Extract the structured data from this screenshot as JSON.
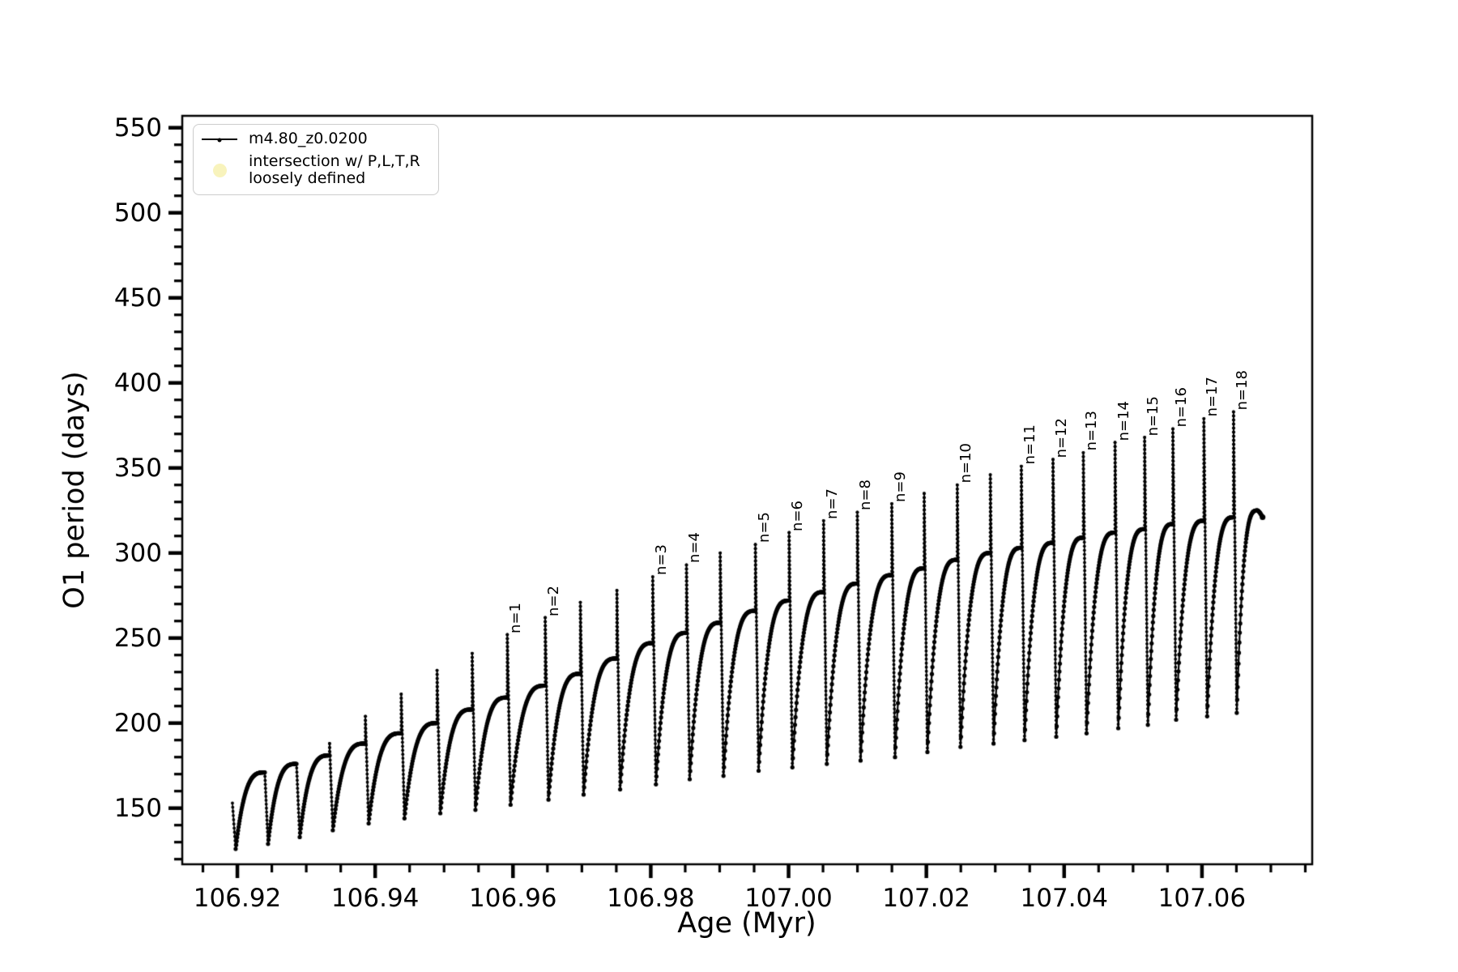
{
  "figure": {
    "x_axis": {
      "label": "Age (Myr)",
      "tick_values": [
        106.92,
        106.94,
        106.96,
        106.98,
        107.0,
        107.02,
        107.04,
        107.06
      ],
      "tick_labels": [
        "106.92",
        "106.94",
        "106.96",
        "106.98",
        "107.00",
        "107.02",
        "107.04",
        "107.06"
      ],
      "minor_step": 0.005
    },
    "y_axis": {
      "label": "O1 period (days)",
      "tick_values": [
        150,
        200,
        250,
        300,
        350,
        400,
        450,
        500,
        550
      ],
      "tick_labels": [
        "150",
        "200",
        "250",
        "300",
        "350",
        "400",
        "450",
        "500",
        "550"
      ],
      "minor_step": 10
    },
    "legend": {
      "items": [
        {
          "label": "m4.80_z0.0200",
          "marker": "line-dot",
          "color": "#000000"
        },
        {
          "label": "intersection w/ P,L,T,R\nloosely defined",
          "marker": "circle",
          "color": "#f8f3bc"
        }
      ]
    },
    "colors": {
      "line": "#000000",
      "legend_marker": "#f8f3bc",
      "legend_border": "#cccccc",
      "background": "#ffffff"
    }
  },
  "chart_data": {
    "type": "line",
    "title": "",
    "xlabel": "Age (Myr)",
    "ylabel": "O1 period (days)",
    "xlim": [
      106.912,
      107.076
    ],
    "ylim": [
      117,
      557
    ],
    "grid": false,
    "legend_position": "upper left",
    "series_name": "m4.80_z0.0200",
    "description": "Sawtooth pulsation cycles: each cycle drops sharply to a minimum, rises steeply to a saturating plateau, and ends in a narrow vertical spike; labeled spikes n=1..n=18.",
    "entry": {
      "age": 106.9194,
      "value": 153
    },
    "cycles": [
      {
        "start": 106.9194,
        "end": 106.9241,
        "min": 126,
        "plateau": 171,
        "spike": null,
        "label": null
      },
      {
        "start": 106.9241,
        "end": 106.9287,
        "min": 129,
        "plateau": 176,
        "spike": null,
        "label": null
      },
      {
        "start": 106.9287,
        "end": 106.9335,
        "min": 133,
        "plateau": 181,
        "spike": 188,
        "label": null
      },
      {
        "start": 106.9335,
        "end": 106.9387,
        "min": 137,
        "plateau": 188,
        "spike": 204,
        "label": null
      },
      {
        "start": 106.9387,
        "end": 106.9439,
        "min": 141,
        "plateau": 194,
        "spike": 217,
        "label": null
      },
      {
        "start": 106.9439,
        "end": 106.9491,
        "min": 144,
        "plateau": 200,
        "spike": 231,
        "label": null
      },
      {
        "start": 106.9491,
        "end": 106.9542,
        "min": 147,
        "plateau": 208,
        "spike": 241,
        "label": null
      },
      {
        "start": 106.9542,
        "end": 106.9593,
        "min": 149,
        "plateau": 215,
        "spike": 252,
        "label": "n=1"
      },
      {
        "start": 106.9593,
        "end": 106.9648,
        "min": 152,
        "plateau": 222,
        "spike": 262,
        "label": "n=2"
      },
      {
        "start": 106.9648,
        "end": 106.9699,
        "min": 155,
        "plateau": 229,
        "spike": 271,
        "label": null
      },
      {
        "start": 106.9699,
        "end": 106.9752,
        "min": 158,
        "plateau": 238,
        "spike": 278,
        "label": null
      },
      {
        "start": 106.9752,
        "end": 106.9804,
        "min": 161,
        "plateau": 247,
        "spike": 286,
        "label": "n=3"
      },
      {
        "start": 106.9804,
        "end": 106.9853,
        "min": 164,
        "plateau": 253,
        "spike": 293,
        "label": "n=4"
      },
      {
        "start": 106.9853,
        "end": 106.9902,
        "min": 167,
        "plateau": 259,
        "spike": 300,
        "label": null
      },
      {
        "start": 106.9902,
        "end": 106.9953,
        "min": 169,
        "plateau": 266,
        "spike": 305,
        "label": "n=5"
      },
      {
        "start": 106.9953,
        "end": 107.0002,
        "min": 172,
        "plateau": 272,
        "spike": 312,
        "label": "n=6"
      },
      {
        "start": 107.0002,
        "end": 107.0052,
        "min": 174,
        "plateau": 277,
        "spike": 319,
        "label": "n=7"
      },
      {
        "start": 107.0052,
        "end": 107.0101,
        "min": 176,
        "plateau": 282,
        "spike": 324,
        "label": "n=8"
      },
      {
        "start": 107.0101,
        "end": 107.0151,
        "min": 178,
        "plateau": 287,
        "spike": 329,
        "label": "n=9"
      },
      {
        "start": 107.0151,
        "end": 107.0198,
        "min": 180,
        "plateau": 291,
        "spike": 335,
        "label": null
      },
      {
        "start": 107.0198,
        "end": 107.0246,
        "min": 183,
        "plateau": 296,
        "spike": 340,
        "label": "n=10"
      },
      {
        "start": 107.0246,
        "end": 107.0294,
        "min": 186,
        "plateau": 300,
        "spike": 346,
        "label": null
      },
      {
        "start": 107.0294,
        "end": 107.0339,
        "min": 188,
        "plateau": 303,
        "spike": 351,
        "label": "n=11"
      },
      {
        "start": 107.0339,
        "end": 107.0385,
        "min": 190,
        "plateau": 306,
        "spike": 355,
        "label": "n=12"
      },
      {
        "start": 107.0385,
        "end": 107.0429,
        "min": 192,
        "plateau": 309,
        "spike": 359,
        "label": "n=13"
      },
      {
        "start": 107.0429,
        "end": 107.0475,
        "min": 194,
        "plateau": 312,
        "spike": 365,
        "label": "n=14"
      },
      {
        "start": 107.0475,
        "end": 107.0518,
        "min": 197,
        "plateau": 314,
        "spike": 368,
        "label": "n=15"
      },
      {
        "start": 107.0518,
        "end": 107.0559,
        "min": 199,
        "plateau": 317,
        "spike": 373,
        "label": "n=16"
      },
      {
        "start": 107.0559,
        "end": 107.0604,
        "min": 202,
        "plateau": 319,
        "spike": 379,
        "label": "n=17"
      },
      {
        "start": 107.0604,
        "end": 107.0647,
        "min": 204,
        "plateau": 321,
        "spike": 383,
        "label": "n=18"
      }
    ],
    "tail": {
      "start": 107.0647,
      "end": 107.0688,
      "min": 206,
      "peak": 325,
      "end_value": 321
    }
  }
}
